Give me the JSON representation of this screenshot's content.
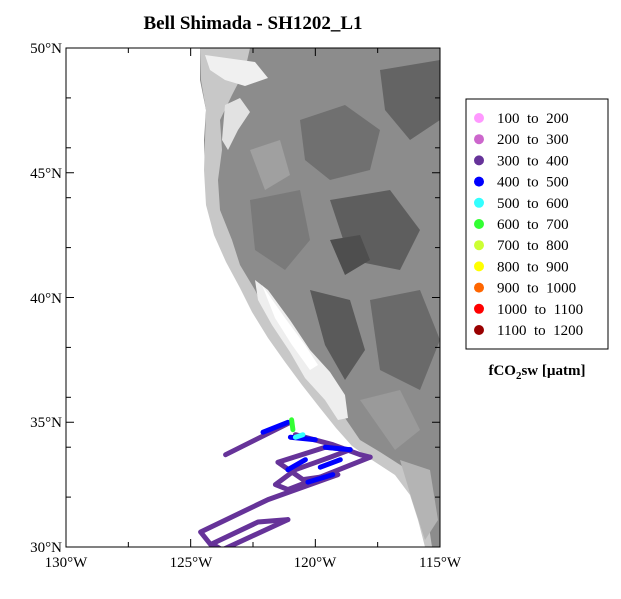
{
  "title": "Bell Shimada - SH1202_L1",
  "axes": {
    "lat_labels": [
      "50°N",
      "45°N",
      "40°N",
      "35°N",
      "30°N"
    ],
    "lon_labels": [
      "130°W",
      "125°W",
      "120°W",
      "115°W"
    ],
    "lat_range": [
      30,
      50
    ],
    "lon_range": [
      -130,
      -115
    ]
  },
  "legend": {
    "title_main": "fCO",
    "title_sub": "2",
    "title_rest": "sw [µatm]",
    "entries": [
      {
        "label": "100  to  200",
        "color": "#ff99ff"
      },
      {
        "label": "200  to  300",
        "color": "#cc66cc"
      },
      {
        "label": "300  to  400",
        "color": "#663399"
      },
      {
        "label": "400  to  500",
        "color": "#0000ff"
      },
      {
        "label": "500  to  600",
        "color": "#33ffff"
      },
      {
        "label": "600  to  700",
        "color": "#33ff33"
      },
      {
        "label": "700  to  800",
        "color": "#ccff33"
      },
      {
        "label": "800  to  900",
        "color": "#ffff00"
      },
      {
        "label": "900  to  1000",
        "color": "#ff6600"
      },
      {
        "label": "1000  to  1100",
        "color": "#ff0000"
      },
      {
        "label": "1100  to  1200",
        "color": "#990000"
      }
    ]
  },
  "chart_data": {
    "type": "scatter",
    "title": "Bell Shimada - SH1202_L1",
    "xlim": [
      -130,
      -115
    ],
    "ylim": [
      30,
      50
    ],
    "legend_position": "right",
    "tracks": [
      {
        "range": "300 to 400",
        "points": [
          [
            -123.6,
            33.7
          ],
          [
            -121.0,
            35.0
          ]
        ]
      },
      {
        "range": "300 to 400",
        "points": [
          [
            -120.8,
            34.5
          ],
          [
            -119.3,
            34.1
          ],
          [
            -118.2,
            33.7
          ],
          [
            -117.8,
            33.6
          ]
        ]
      },
      {
        "range": "300 to 400",
        "points": [
          [
            -117.8,
            33.6
          ],
          [
            -119.8,
            32.8
          ],
          [
            -121.1,
            32.3
          ],
          [
            -121.6,
            32.5
          ],
          [
            -120.8,
            33.1
          ],
          [
            -119.4,
            33.6
          ],
          [
            -118.6,
            33.9
          ]
        ]
      },
      {
        "range": "300 to 400",
        "points": [
          [
            -118.6,
            33.9
          ],
          [
            -119.6,
            34.0
          ],
          [
            -121.5,
            33.4
          ],
          [
            -120.5,
            32.7
          ],
          [
            -119.1,
            32.9
          ]
        ]
      },
      {
        "range": "300 to 400",
        "points": [
          [
            -119.1,
            32.9
          ],
          [
            -121.9,
            31.9
          ],
          [
            -124.6,
            30.6
          ],
          [
            -124.2,
            30.1
          ],
          [
            -122.3,
            31.0
          ],
          [
            -121.1,
            31.1
          ]
        ]
      },
      {
        "range": "300 to 400",
        "points": [
          [
            -121.1,
            31.1
          ],
          [
            -123.7,
            29.9
          ],
          [
            -123.6,
            29.8
          ],
          [
            -124.1,
            30.1
          ]
        ]
      },
      {
        "range": "400 to 500",
        "points": [
          [
            -122.1,
            34.6
          ],
          [
            -121.1,
            35.0
          ]
        ]
      },
      {
        "range": "400 to 500",
        "points": [
          [
            -121.0,
            34.4
          ],
          [
            -120.0,
            34.3
          ]
        ]
      },
      {
        "range": "400 to 500",
        "points": [
          [
            -119.6,
            34.0
          ],
          [
            -118.6,
            33.9
          ]
        ]
      },
      {
        "range": "400 to 500",
        "points": [
          [
            -121.1,
            33.1
          ],
          [
            -120.4,
            33.5
          ]
        ]
      },
      {
        "range": "400 to 500",
        "points": [
          [
            -120.3,
            32.6
          ],
          [
            -119.3,
            32.9
          ]
        ]
      },
      {
        "range": "400 to 500",
        "points": [
          [
            -119.8,
            33.2
          ],
          [
            -119.0,
            33.5
          ]
        ]
      },
      {
        "range": "500 to 600",
        "points": [
          [
            -120.8,
            34.4
          ],
          [
            -120.5,
            34.5
          ]
        ]
      },
      {
        "range": "600 to 700",
        "points": [
          [
            -120.95,
            35.1
          ],
          [
            -120.9,
            34.7
          ]
        ]
      }
    ]
  }
}
